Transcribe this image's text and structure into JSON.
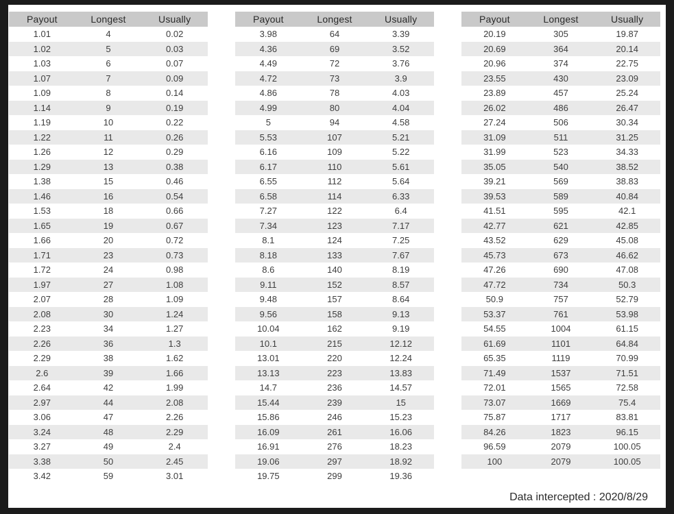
{
  "chart_data": [
    {
      "type": "table",
      "columns": [
        "Payout",
        "Longest",
        "Usually"
      ],
      "rows": [
        [
          "1.01",
          "4",
          "0.02"
        ],
        [
          "1.02",
          "5",
          "0.03"
        ],
        [
          "1.03",
          "6",
          "0.07"
        ],
        [
          "1.07",
          "7",
          "0.09"
        ],
        [
          "1.09",
          "8",
          "0.14"
        ],
        [
          "1.14",
          "9",
          "0.19"
        ],
        [
          "1.19",
          "10",
          "0.22"
        ],
        [
          "1.22",
          "11",
          "0.26"
        ],
        [
          "1.26",
          "12",
          "0.29"
        ],
        [
          "1.29",
          "13",
          "0.38"
        ],
        [
          "1.38",
          "15",
          "0.46"
        ],
        [
          "1.46",
          "16",
          "0.54"
        ],
        [
          "1.53",
          "18",
          "0.66"
        ],
        [
          "1.65",
          "19",
          "0.67"
        ],
        [
          "1.66",
          "20",
          "0.72"
        ],
        [
          "1.71",
          "23",
          "0.73"
        ],
        [
          "1.72",
          "24",
          "0.98"
        ],
        [
          "1.97",
          "27",
          "1.08"
        ],
        [
          "2.07",
          "28",
          "1.09"
        ],
        [
          "2.08",
          "30",
          "1.24"
        ],
        [
          "2.23",
          "34",
          "1.27"
        ],
        [
          "2.26",
          "36",
          "1.3"
        ],
        [
          "2.29",
          "38",
          "1.62"
        ],
        [
          "2.6",
          "39",
          "1.66"
        ],
        [
          "2.64",
          "42",
          "1.99"
        ],
        [
          "2.97",
          "44",
          "2.08"
        ],
        [
          "3.06",
          "47",
          "2.26"
        ],
        [
          "3.24",
          "48",
          "2.29"
        ],
        [
          "3.27",
          "49",
          "2.4"
        ],
        [
          "3.38",
          "50",
          "2.45"
        ],
        [
          "3.42",
          "59",
          "3.01"
        ]
      ]
    },
    {
      "type": "table",
      "columns": [
        "Payout",
        "Longest",
        "Usually"
      ],
      "rows": [
        [
          "3.98",
          "64",
          "3.39"
        ],
        [
          "4.36",
          "69",
          "3.52"
        ],
        [
          "4.49",
          "72",
          "3.76"
        ],
        [
          "4.72",
          "73",
          "3.9"
        ],
        [
          "4.86",
          "78",
          "4.03"
        ],
        [
          "4.99",
          "80",
          "4.04"
        ],
        [
          "5",
          "94",
          "4.58"
        ],
        [
          "5.53",
          "107",
          "5.21"
        ],
        [
          "6.16",
          "109",
          "5.22"
        ],
        [
          "6.17",
          "110",
          "5.61"
        ],
        [
          "6.55",
          "112",
          "5.64"
        ],
        [
          "6.58",
          "114",
          "6.33"
        ],
        [
          "7.27",
          "122",
          "6.4"
        ],
        [
          "7.34",
          "123",
          "7.17"
        ],
        [
          "8.1",
          "124",
          "7.25"
        ],
        [
          "8.18",
          "133",
          "7.67"
        ],
        [
          "8.6",
          "140",
          "8.19"
        ],
        [
          "9.11",
          "152",
          "8.57"
        ],
        [
          "9.48",
          "157",
          "8.64"
        ],
        [
          "9.56",
          "158",
          "9.13"
        ],
        [
          "10.04",
          "162",
          "9.19"
        ],
        [
          "10.1",
          "215",
          "12.12"
        ],
        [
          "13.01",
          "220",
          "12.24"
        ],
        [
          "13.13",
          "223",
          "13.83"
        ],
        [
          "14.7",
          "236",
          "14.57"
        ],
        [
          "15.44",
          "239",
          "15"
        ],
        [
          "15.86",
          "246",
          "15.23"
        ],
        [
          "16.09",
          "261",
          "16.06"
        ],
        [
          "16.91",
          "276",
          "18.23"
        ],
        [
          "19.06",
          "297",
          "18.92"
        ],
        [
          "19.75",
          "299",
          "19.36"
        ]
      ]
    },
    {
      "type": "table",
      "columns": [
        "Payout",
        "Longest",
        "Usually"
      ],
      "rows": [
        [
          "20.19",
          "305",
          "19.87"
        ],
        [
          "20.69",
          "364",
          "20.14"
        ],
        [
          "20.96",
          "374",
          "22.75"
        ],
        [
          "23.55",
          "430",
          "23.09"
        ],
        [
          "23.89",
          "457",
          "25.24"
        ],
        [
          "26.02",
          "486",
          "26.47"
        ],
        [
          "27.24",
          "506",
          "30.34"
        ],
        [
          "31.09",
          "511",
          "31.25"
        ],
        [
          "31.99",
          "523",
          "34.33"
        ],
        [
          "35.05",
          "540",
          "38.52"
        ],
        [
          "39.21",
          "569",
          "38.83"
        ],
        [
          "39.53",
          "589",
          "40.84"
        ],
        [
          "41.51",
          "595",
          "42.1"
        ],
        [
          "42.77",
          "621",
          "42.85"
        ],
        [
          "43.52",
          "629",
          "45.08"
        ],
        [
          "45.73",
          "673",
          "46.62"
        ],
        [
          "47.26",
          "690",
          "47.08"
        ],
        [
          "47.72",
          "734",
          "50.3"
        ],
        [
          "50.9",
          "757",
          "52.79"
        ],
        [
          "53.37",
          "761",
          "53.98"
        ],
        [
          "54.55",
          "1004",
          "61.15"
        ],
        [
          "61.69",
          "1101",
          "64.84"
        ],
        [
          "65.35",
          "1119",
          "70.99"
        ],
        [
          "71.49",
          "1537",
          "71.51"
        ],
        [
          "72.01",
          "1565",
          "72.58"
        ],
        [
          "73.07",
          "1669",
          "75.4"
        ],
        [
          "75.87",
          "1717",
          "83.81"
        ],
        [
          "84.26",
          "1823",
          "96.15"
        ],
        [
          "96.59",
          "2079",
          "100.05"
        ],
        [
          "100",
          "2079",
          "100.05"
        ]
      ]
    }
  ],
  "footer": {
    "text": "Data intercepted : 2020/8/29"
  },
  "colors": {
    "frame": "#1b1b1b",
    "page_bg": "#ffffff",
    "header_bg": "#c9c9c9",
    "stripe_bg": "#e9e9e9",
    "text": "#3d3d3d"
  }
}
